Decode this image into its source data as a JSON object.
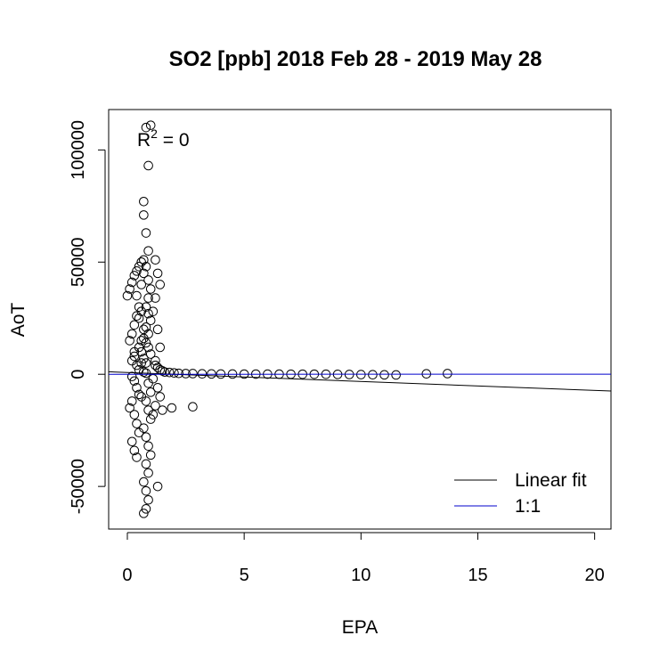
{
  "chart_data": {
    "type": "scatter",
    "title": "SO2 [ppb] 2018 Feb 28 - 2019 May 28",
    "xlabel": "EPA",
    "ylabel": "AoT",
    "xlim": [
      -0.8,
      20.7
    ],
    "ylim": [
      -69000,
      118000
    ],
    "x_ticks": [
      0,
      5,
      10,
      15,
      20
    ],
    "y_ticks": [
      -50000,
      0,
      50000,
      100000
    ],
    "x_tick_labels": [
      "0",
      "5",
      "10",
      "15",
      "20"
    ],
    "y_tick_labels": [
      "-50000",
      "0",
      "50000",
      "100000"
    ],
    "annotation": {
      "base": "R",
      "superscript": "2",
      "rest": " = 0"
    },
    "legend": {
      "position": "bottom-right",
      "entries": [
        {
          "label": "Linear fit",
          "color": "#000000"
        },
        {
          "label": "1:1",
          "color": "#0000cc"
        }
      ]
    },
    "lines": {
      "linear_fit": {
        "color": "#000000",
        "slope": -400,
        "intercept": 800
      },
      "one_to_one": {
        "color": "#0000cc",
        "slope": 1,
        "intercept": 0
      }
    },
    "points": [
      [
        0.6,
        50000
      ],
      [
        0.5,
        48000
      ],
      [
        0.7,
        51000
      ],
      [
        0.4,
        46000
      ],
      [
        0.3,
        44000
      ],
      [
        0.2,
        41000
      ],
      [
        0.1,
        38000
      ],
      [
        0.0,
        35000
      ],
      [
        0.5,
        30000
      ],
      [
        0.6,
        28000
      ],
      [
        0.4,
        26000
      ],
      [
        0.3,
        22000
      ],
      [
        0.2,
        18000
      ],
      [
        0.1,
        15000
      ],
      [
        0.5,
        12000
      ],
      [
        0.6,
        10000
      ],
      [
        0.3,
        8000
      ],
      [
        0.2,
        6000
      ],
      [
        0.4,
        4000
      ],
      [
        0.5,
        2000
      ],
      [
        0.7,
        1000
      ],
      [
        0.8,
        500
      ],
      [
        0.2,
        -1000
      ],
      [
        0.3,
        -3000
      ],
      [
        0.4,
        -6000
      ],
      [
        0.5,
        -9000
      ],
      [
        0.2,
        -12000
      ],
      [
        0.1,
        -15000
      ],
      [
        0.3,
        -18000
      ],
      [
        0.4,
        -22000
      ],
      [
        0.5,
        -26000
      ],
      [
        0.2,
        -30000
      ],
      [
        0.3,
        -34000
      ],
      [
        0.4,
        -37000
      ],
      [
        0.8,
        110000
      ],
      [
        1.0,
        111000
      ],
      [
        0.9,
        93000
      ],
      [
        0.7,
        77000
      ],
      [
        0.7,
        71000
      ],
      [
        0.8,
        63000
      ],
      [
        0.9,
        55000
      ],
      [
        0.8,
        48000
      ],
      [
        0.9,
        42000
      ],
      [
        1.0,
        38000
      ],
      [
        0.9,
        34000
      ],
      [
        0.8,
        30000
      ],
      [
        0.9,
        27000
      ],
      [
        1.0,
        24000
      ],
      [
        0.8,
        21000
      ],
      [
        0.9,
        18000
      ],
      [
        0.7,
        16000
      ],
      [
        0.8,
        14000
      ],
      [
        0.9,
        12000
      ],
      [
        1.0,
        9000
      ],
      [
        0.7,
        7000
      ],
      [
        0.8,
        5000
      ],
      [
        1.2,
        4000
      ],
      [
        1.3,
        3000
      ],
      [
        1.4,
        2000
      ],
      [
        1.5,
        1500
      ],
      [
        1.6,
        1000
      ],
      [
        1.8,
        800
      ],
      [
        2.0,
        600
      ],
      [
        2.2,
        400
      ],
      [
        2.5,
        300
      ],
      [
        2.8,
        300
      ],
      [
        3.2,
        200
      ],
      [
        3.6,
        150
      ],
      [
        4.0,
        100
      ],
      [
        4.5,
        100
      ],
      [
        5.0,
        80
      ],
      [
        5.5,
        60
      ],
      [
        6.0,
        50
      ],
      [
        6.5,
        40
      ],
      [
        7.0,
        30
      ],
      [
        7.5,
        20
      ],
      [
        8.0,
        10
      ],
      [
        8.5,
        0
      ],
      [
        9.0,
        -50
      ],
      [
        9.5,
        -100
      ],
      [
        10.0,
        -150
      ],
      [
        10.5,
        -200
      ],
      [
        11.0,
        -250
      ],
      [
        11.5,
        -300
      ],
      [
        12.8,
        200
      ],
      [
        13.7,
        300
      ],
      [
        0.9,
        -4000
      ],
      [
        1.0,
        -8000
      ],
      [
        0.8,
        -12000
      ],
      [
        0.9,
        -16000
      ],
      [
        1.0,
        -20000
      ],
      [
        0.7,
        -24000
      ],
      [
        0.8,
        -28000
      ],
      [
        0.9,
        -32000
      ],
      [
        1.0,
        -36000
      ],
      [
        0.8,
        -40000
      ],
      [
        0.9,
        -44000
      ],
      [
        0.7,
        -48000
      ],
      [
        0.8,
        -52000
      ],
      [
        0.9,
        -56000
      ],
      [
        0.8,
        -60000
      ],
      [
        0.7,
        -62000
      ],
      [
        1.3,
        -50000
      ],
      [
        1.2,
        51000
      ],
      [
        1.3,
        45000
      ],
      [
        1.4,
        40000
      ],
      [
        1.2,
        34000
      ],
      [
        1.1,
        28000
      ],
      [
        1.3,
        20000
      ],
      [
        1.4,
        12000
      ],
      [
        1.2,
        6000
      ],
      [
        1.1,
        -2000
      ],
      [
        1.3,
        -6000
      ],
      [
        1.4,
        -10000
      ],
      [
        1.2,
        -14000
      ],
      [
        1.1,
        -18000
      ],
      [
        1.5,
        -16000
      ],
      [
        1.9,
        -15000
      ],
      [
        2.8,
        -14500
      ],
      [
        0.6,
        15000
      ],
      [
        0.6,
        -10000
      ],
      [
        0.7,
        20000
      ],
      [
        0.5,
        25000
      ],
      [
        0.4,
        35000
      ],
      [
        0.6,
        40000
      ],
      [
        0.7,
        45000
      ],
      [
        0.3,
        10000
      ],
      [
        0.6,
        5000
      ]
    ]
  }
}
